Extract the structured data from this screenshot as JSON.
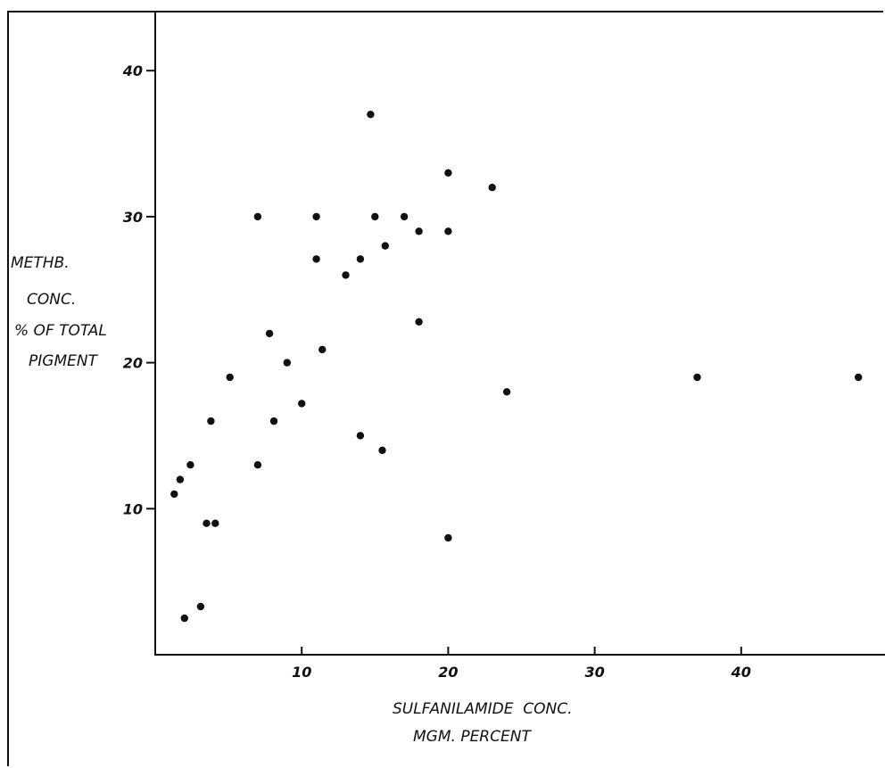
{
  "chart_data": {
    "type": "scatter",
    "title": "",
    "xlabel_lines": [
      "SULFANILAMIDE  CONC.",
      "MGM. PERCENT"
    ],
    "ylabel_lines": [
      "METHB.",
      "CONC.",
      "% OF TOTAL",
      "PIGMENT"
    ],
    "xlim": [
      0,
      50
    ],
    "ylim": [
      0,
      44
    ],
    "x_ticks": [
      {
        "value": 10,
        "label": "10"
      },
      {
        "value": 20,
        "label": "20"
      },
      {
        "value": 30,
        "label": "30"
      },
      {
        "value": 40,
        "label": "40"
      }
    ],
    "y_ticks": [
      {
        "value": 10,
        "label": "10"
      },
      {
        "value": 20,
        "label": "20"
      },
      {
        "value": 30,
        "label": "30"
      },
      {
        "value": 40,
        "label": "40"
      }
    ],
    "grid": false,
    "marker_color": "#111111",
    "points": [
      {
        "x": 1.3,
        "y": 11
      },
      {
        "x": 1.7,
        "y": 12
      },
      {
        "x": 2.4,
        "y": 13
      },
      {
        "x": 2.0,
        "y": 2.5
      },
      {
        "x": 3.1,
        "y": 3.3
      },
      {
        "x": 3.5,
        "y": 9
      },
      {
        "x": 4.1,
        "y": 9
      },
      {
        "x": 3.8,
        "y": 16
      },
      {
        "x": 5.1,
        "y": 19
      },
      {
        "x": 7.0,
        "y": 30
      },
      {
        "x": 7.0,
        "y": 13
      },
      {
        "x": 7.8,
        "y": 22
      },
      {
        "x": 8.1,
        "y": 16
      },
      {
        "x": 9.0,
        "y": 20
      },
      {
        "x": 10.0,
        "y": 17.2
      },
      {
        "x": 11.0,
        "y": 30
      },
      {
        "x": 11.0,
        "y": 27.1
      },
      {
        "x": 11.4,
        "y": 20.9
      },
      {
        "x": 13.0,
        "y": 26
      },
      {
        "x": 14.0,
        "y": 27.1
      },
      {
        "x": 14.0,
        "y": 15
      },
      {
        "x": 14.7,
        "y": 37
      },
      {
        "x": 15.0,
        "y": 30
      },
      {
        "x": 15.5,
        "y": 14
      },
      {
        "x": 15.7,
        "y": 28
      },
      {
        "x": 17.0,
        "y": 30
      },
      {
        "x": 18.0,
        "y": 29
      },
      {
        "x": 18.0,
        "y": 22.8
      },
      {
        "x": 20.0,
        "y": 33
      },
      {
        "x": 20.0,
        "y": 29
      },
      {
        "x": 20.0,
        "y": 8
      },
      {
        "x": 23.0,
        "y": 32
      },
      {
        "x": 24.0,
        "y": 18
      },
      {
        "x": 37.0,
        "y": 19
      },
      {
        "x": 48.0,
        "y": 19
      }
    ]
  }
}
